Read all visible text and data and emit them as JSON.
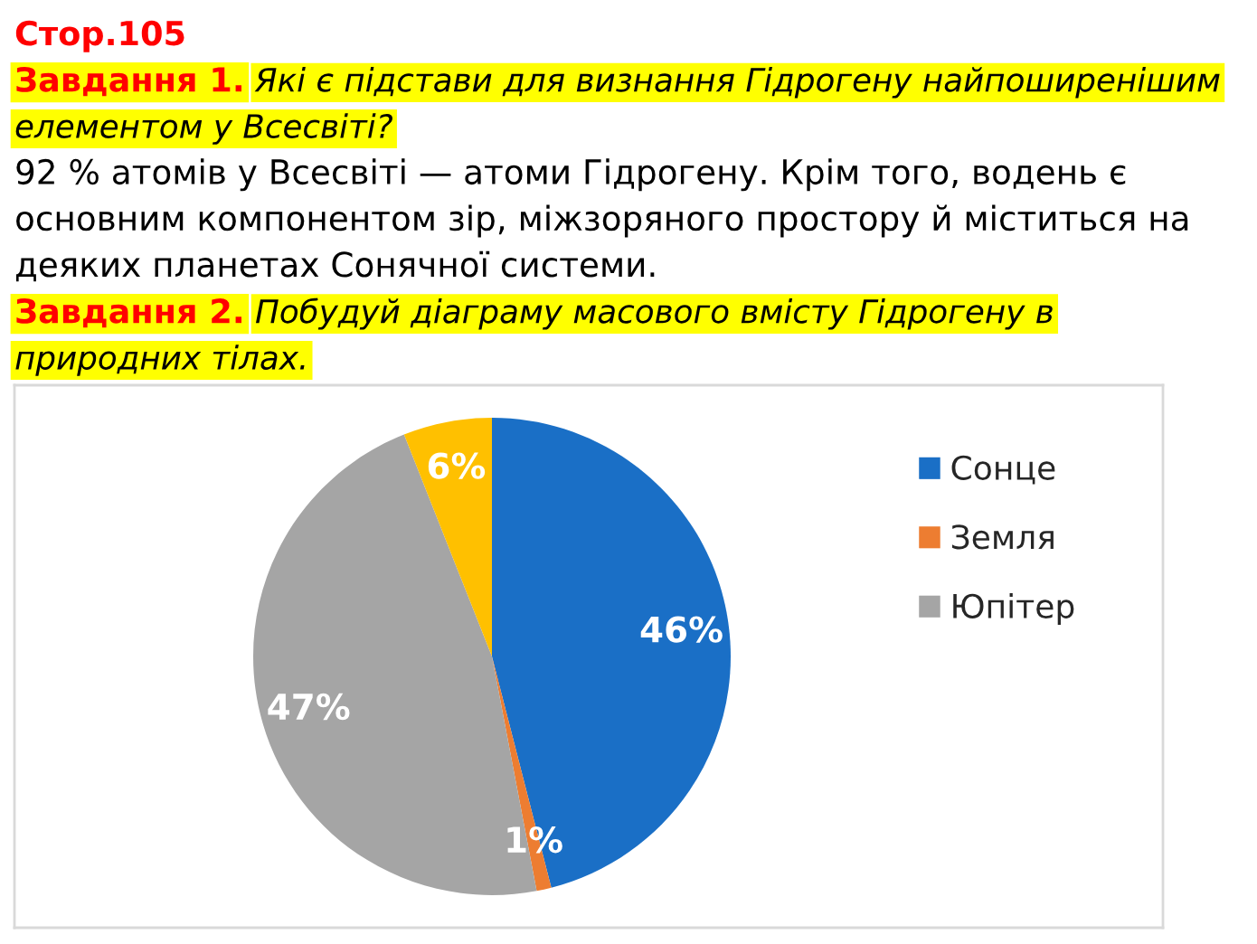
{
  "chart_data": {
    "type": "pie",
    "categories": [
      "Сонце",
      "Земля",
      "Юпітер",
      null
    ],
    "values": [
      46,
      1,
      47,
      6
    ],
    "colors": [
      "#1a6fc6",
      "#ed7d31",
      "#a5a5a5",
      "#ffc000"
    ],
    "value_labels": [
      "46%",
      "1%",
      "47%",
      "6%"
    ],
    "legend": "right",
    "annotations": [
      "Стор.105",
      "Завдання 1.",
      "Які є підстави для визнання Гідрогену найпоширенішим",
      "елементом у Всесвіті?",
      "92 % атомів у Всесвіті — атоми Гідрогену. Крім того, водень є основним компонентом зір, міжзоряного простору й міститься на деяких планетах Сонячної системи.",
      "Завдання 2.",
      "Побудуй діаграму масового вмісту Гідрогену в",
      "природних тілах."
    ]
  }
}
